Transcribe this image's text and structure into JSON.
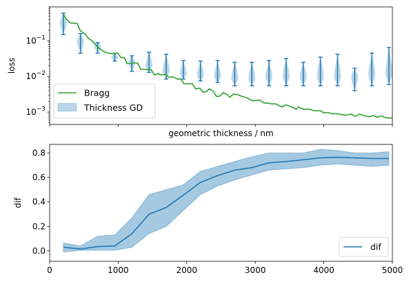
{
  "chart_data": [
    {
      "type": "line",
      "xlabel": "geometric thickness / nm",
      "ylabel": "loss",
      "yscale": "log",
      "xlim": [
        0,
        5000
      ],
      "ylim": [
        0.00045,
        0.9
      ],
      "yticks": [
        {
          "value": 0.001,
          "base": "10",
          "exp": "−3"
        },
        {
          "value": 0.01,
          "base": "10",
          "exp": "−2"
        },
        {
          "value": 0.1,
          "base": "10",
          "exp": "−1"
        }
      ],
      "legend": {
        "location": "lower-left",
        "entries": [
          "Bragg",
          "Thickness GD"
        ]
      },
      "series": [
        {
          "name": "Bragg",
          "kind": "line",
          "color": "#2ca02c",
          "x": [
            200,
            250,
            300,
            400,
            450,
            520,
            560,
            620,
            680,
            730,
            800,
            860,
            920,
            990,
            1040,
            1090,
            1130,
            1180,
            1230,
            1280,
            1330,
            1380,
            1430,
            1480,
            1530,
            1580,
            1630,
            1680,
            1740,
            1800,
            1860,
            1910,
            1960,
            2010,
            2080,
            2130,
            2190,
            2240,
            2290,
            2330,
            2390,
            2430,
            2480,
            2530,
            2580,
            2630,
            2680,
            2740,
            2800,
            2880,
            2950,
            3000,
            3060,
            3130,
            3180,
            3240,
            3300,
            3380,
            3450,
            3530,
            3600,
            3630,
            3700,
            3750,
            3800,
            3850,
            3900,
            3950,
            4000,
            4060,
            4120,
            4200,
            4260,
            4320,
            4400,
            4460,
            4520,
            4600,
            4660,
            4720,
            4780,
            4840,
            4900,
            4960,
            5000
          ],
          "y": [
            0.56,
            0.4,
            0.32,
            0.31,
            0.19,
            0.155,
            0.12,
            0.1,
            0.075,
            0.06,
            0.049,
            0.045,
            0.044,
            0.046,
            0.034,
            0.034,
            0.023,
            0.023,
            0.024,
            0.024,
            0.016,
            0.016,
            0.0155,
            0.0155,
            0.011,
            0.012,
            0.011,
            0.0115,
            0.0095,
            0.0098,
            0.0085,
            0.0085,
            0.0063,
            0.0062,
            0.0063,
            0.0045,
            0.0047,
            0.0036,
            0.0038,
            0.0045,
            0.0038,
            0.0028,
            0.0028,
            0.0035,
            0.0032,
            0.0026,
            0.0032,
            0.0031,
            0.0028,
            0.0025,
            0.0021,
            0.0021,
            0.0022,
            0.0018,
            0.0018,
            0.0017,
            0.0017,
            0.0014,
            0.0016,
            0.0014,
            0.0012,
            0.0014,
            0.0012,
            0.0012,
            0.0012,
            0.0011,
            0.0011,
            0.0011,
            0.00095,
            0.00098,
            0.0009,
            0.0009,
            0.00085,
            0.00082,
            0.00088,
            0.00075,
            0.00088,
            0.00078,
            0.00074,
            0.0008,
            0.00072,
            0.00078,
            0.0007,
            0.00068,
            0.00068
          ]
        },
        {
          "name": "Thickness GD",
          "kind": "violin",
          "color": "#1f77b4",
          "points": [
            {
              "x": 200,
              "min": 0.15,
              "median": 0.32,
              "max": 0.6
            },
            {
              "x": 450,
              "min": 0.045,
              "median": 0.1,
              "max": 0.16
            },
            {
              "x": 700,
              "min": 0.045,
              "median": 0.07,
              "max": 0.09
            },
            {
              "x": 950,
              "min": 0.027,
              "median": 0.035,
              "max": 0.045
            },
            {
              "x": 1200,
              "min": 0.014,
              "median": 0.025,
              "max": 0.038
            },
            {
              "x": 1450,
              "min": 0.013,
              "median": 0.02,
              "max": 0.048
            },
            {
              "x": 1700,
              "min": 0.0085,
              "median": 0.015,
              "max": 0.042
            },
            {
              "x": 1950,
              "min": 0.0085,
              "median": 0.012,
              "max": 0.028
            },
            {
              "x": 2200,
              "min": 0.0075,
              "median": 0.011,
              "max": 0.027
            },
            {
              "x": 2450,
              "min": 0.0068,
              "median": 0.01,
              "max": 0.028
            },
            {
              "x": 2700,
              "min": 0.0055,
              "median": 0.009,
              "max": 0.025
            },
            {
              "x": 2950,
              "min": 0.0055,
              "median": 0.009,
              "max": 0.025
            },
            {
              "x": 3200,
              "min": 0.0055,
              "median": 0.0095,
              "max": 0.028
            },
            {
              "x": 3450,
              "min": 0.0055,
              "median": 0.01,
              "max": 0.032
            },
            {
              "x": 3700,
              "min": 0.0055,
              "median": 0.0095,
              "max": 0.025
            },
            {
              "x": 3950,
              "min": 0.0055,
              "median": 0.01,
              "max": 0.035
            },
            {
              "x": 4200,
              "min": 0.0055,
              "median": 0.01,
              "max": 0.042
            },
            {
              "x": 4450,
              "min": 0.004,
              "median": 0.0095,
              "max": 0.017
            },
            {
              "x": 4700,
              "min": 0.0055,
              "median": 0.011,
              "max": 0.045
            },
            {
              "x": 4950,
              "min": 0.006,
              "median": 0.012,
              "max": 0.065
            }
          ]
        }
      ]
    },
    {
      "type": "line",
      "xlabel": "",
      "ylabel": "dif",
      "xlim": [
        0,
        5000
      ],
      "ylim": [
        -0.085,
        0.87
      ],
      "xticks": [
        0,
        1000,
        2000,
        3000,
        4000,
        5000
      ],
      "xticklabels": [
        "0",
        "1000",
        "2000",
        "3000",
        "4000",
        "5000"
      ],
      "yticks": [
        0.0,
        0.2,
        0.4,
        0.6,
        0.8
      ],
      "yticklabels": [
        "0.0",
        "0.2",
        "0.4",
        "0.6",
        "0.8"
      ],
      "legend": {
        "location": "lower-right",
        "entries": [
          "dif"
        ]
      },
      "series": [
        {
          "name": "dif",
          "kind": "line-band",
          "color": "#1f77b4",
          "x": [
            200,
            450,
            700,
            950,
            1200,
            1450,
            1700,
            1950,
            2200,
            2450,
            2700,
            2950,
            3200,
            3450,
            3700,
            3950,
            4200,
            4450,
            4700,
            4950
          ],
          "y": [
            0.03,
            0.015,
            0.035,
            0.04,
            0.14,
            0.3,
            0.355,
            0.455,
            0.56,
            0.615,
            0.66,
            0.68,
            0.72,
            0.73,
            0.745,
            0.76,
            0.765,
            0.76,
            0.755,
            0.755
          ],
          "y_lower": [
            -0.01,
            0.005,
            0.005,
            0.005,
            0.03,
            0.14,
            0.2,
            0.33,
            0.46,
            0.53,
            0.58,
            0.62,
            0.66,
            0.67,
            0.68,
            0.7,
            0.71,
            0.7,
            0.69,
            0.7
          ],
          "y_upper": [
            0.065,
            0.04,
            0.12,
            0.13,
            0.27,
            0.46,
            0.5,
            0.54,
            0.65,
            0.69,
            0.73,
            0.77,
            0.8,
            0.8,
            0.8,
            0.83,
            0.82,
            0.8,
            0.8,
            0.81
          ]
        }
      ]
    }
  ]
}
